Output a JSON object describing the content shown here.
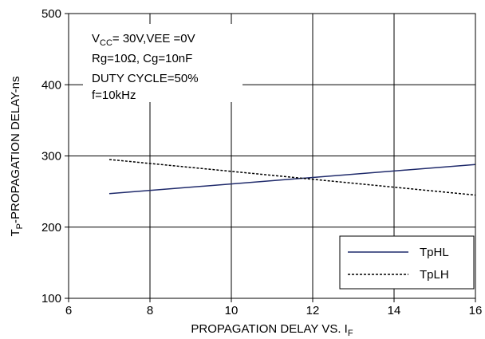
{
  "chart_data": {
    "type": "line",
    "title": "",
    "xlabel": "PROPAGATION DELAY VS. I",
    "xlabel_sub": "F",
    "ylabel": "T",
    "ylabel_sub": "P",
    "ylabel_rest": "-PROPAGATION DELAY-ns",
    "xlim": [
      6,
      16
    ],
    "ylim": [
      100,
      500
    ],
    "xticks": [
      6,
      8,
      10,
      12,
      14,
      16
    ],
    "yticks": [
      100,
      200,
      300,
      400,
      500
    ],
    "grid": true,
    "annotation": {
      "line1": {
        "a": "V",
        "a_sub": "CC",
        "b": "= 30V,VEE =0V"
      },
      "line2": "Rg=10Ω, Cg=10nF",
      "line3": "DUTY CYCLE=50%",
      "line4": "f=10kHz"
    },
    "legend_position": "bottom-right",
    "series": [
      {
        "name": "TpHL",
        "style": "solid",
        "color": "#1f2a6b",
        "x": [
          7,
          16
        ],
        "y": [
          247,
          288
        ]
      },
      {
        "name": "TpLH",
        "style": "dashed",
        "color": "#000000",
        "x": [
          7,
          16
        ],
        "y": [
          295,
          245
        ]
      }
    ]
  }
}
